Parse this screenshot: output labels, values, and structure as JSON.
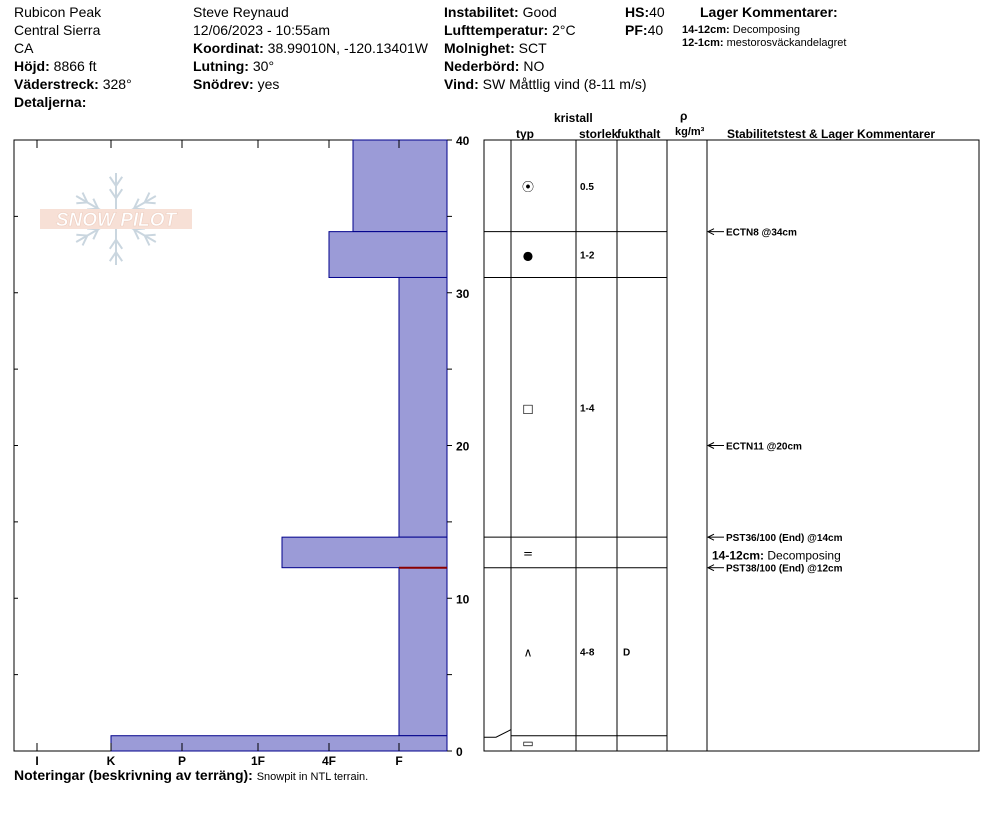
{
  "header": {
    "location": "Rubicon Peak",
    "range": "Central Sierra",
    "state": "CA",
    "elevation_label": "Höjd:",
    "elevation_value": "8866 ft",
    "aspect_label": "Väderstreck:",
    "aspect_value": "328°",
    "details_label": "Detaljerna:",
    "observer": "Steve Reynaud",
    "datetime": "12/06/2023 - 10:55am",
    "coord_label": "Koordinat:",
    "coord_value": "38.99010N, -120.13401W",
    "slope_label": "Lutning:",
    "slope_value": "30°",
    "wind_loading_label": "Snödrev:",
    "wind_loading_value": "yes",
    "stability_label": "Instabilitet:",
    "stability_value": "Good",
    "air_temp_label": "Lufttemperatur:",
    "air_temp_value": "2°C",
    "sky_label": "Molnighet:",
    "sky_value": "SCT",
    "precip_label": "Nederbörd:",
    "precip_value": "NO",
    "wind_label": "Vind:",
    "wind_value": "SW  Måttlig vind (8-11 m/s)",
    "hs_label": "HS:",
    "hs_value": "40",
    "pf_label": "PF:",
    "pf_value": "40",
    "layer_comments_title": "Lager Kommentarer:",
    "layer_comments": [
      {
        "range": "14-12cm:",
        "text": "Decomposing"
      },
      {
        "range": "12-1cm:",
        "text": "mestorosväckandelagret"
      }
    ]
  },
  "logo_text": "SNOW PILOT",
  "columns": {
    "type": "typ",
    "crystal": "kristall",
    "size": "storlek",
    "moisture": "fukthalt",
    "rho": "ρ",
    "density_unit": "kg/m³",
    "stability": "Stabilitetstest & Lager Kommentarer"
  },
  "notes_label": "Noteringar (beskrivning av terräng):",
  "notes_value": "Snowpit in NTL terrain.",
  "colors": {
    "layer_fill": "#9b9bd7",
    "layer_edge": "#00008b",
    "weak_layer": "#8b0000"
  },
  "chart_data": {
    "type": "bar",
    "orientation": "horizontal",
    "x_categories": [
      "I",
      "K",
      "P",
      "1F",
      "4F",
      "F"
    ],
    "ylim": [
      0,
      40
    ],
    "y_ticks": [
      0,
      10,
      20,
      30,
      40
    ],
    "layers": [
      {
        "top": 40,
        "bottom": 34,
        "hardness": "4F-"
      },
      {
        "top": 34,
        "bottom": 31,
        "hardness": "4F"
      },
      {
        "top": 31,
        "bottom": 14,
        "hardness": "F"
      },
      {
        "top": 14,
        "bottom": 12,
        "hardness": "1F-"
      },
      {
        "top": 12,
        "bottom": 1,
        "hardness": "F"
      },
      {
        "top": 1,
        "bottom": 0,
        "hardness": "K"
      }
    ],
    "weak_layer_height": 12,
    "crystals": [
      {
        "height": 37,
        "symbol": "⦿",
        "size": "0.5",
        "moisture": ""
      },
      {
        "height": 32.5,
        "symbol": "●",
        "size": "1-2",
        "moisture": ""
      },
      {
        "height": 22.5,
        "symbol": "□",
        "size": "1-4",
        "moisture": ""
      },
      {
        "height": 13,
        "symbol": "=",
        "size": "",
        "moisture": ""
      },
      {
        "height": 6.5,
        "symbol": "∧",
        "size": "4-8",
        "moisture": "D"
      },
      {
        "height": 0.6,
        "symbol": "▭",
        "size": "",
        "moisture": ""
      }
    ],
    "stability_tests": [
      {
        "height": 34,
        "label": "ECTN8 @34cm"
      },
      {
        "height": 20,
        "label": "ECTN11 @20cm"
      },
      {
        "height": 14,
        "label": "PST36/100 (End) @14cm"
      },
      {
        "height": 12,
        "label": "PST38/100 (End) @12cm"
      }
    ],
    "side_comment": {
      "height": 12.8,
      "range": "14-12cm:",
      "text": "Decomposing"
    }
  }
}
